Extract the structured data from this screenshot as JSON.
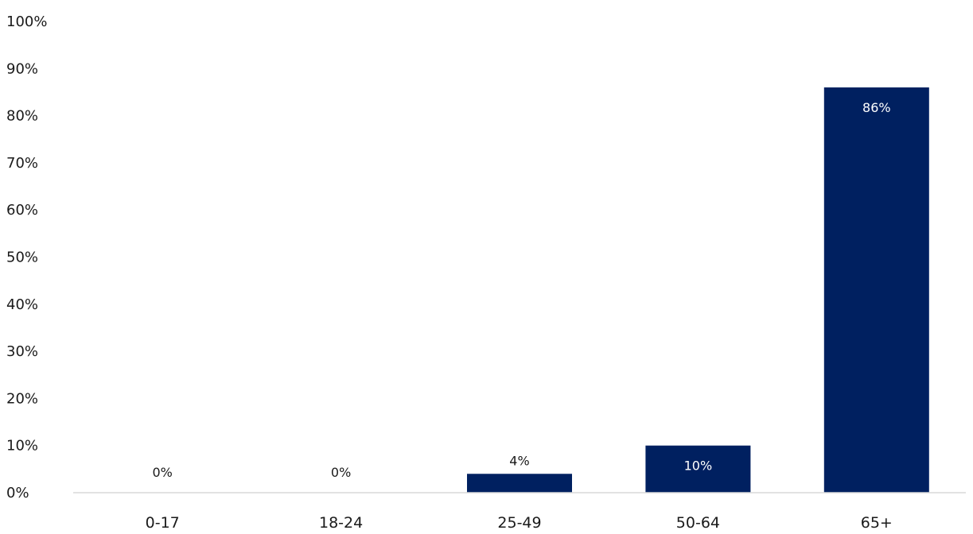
{
  "chart_data": {
    "type": "bar",
    "categories": [
      "0-17",
      "18-24",
      "25-49",
      "50-64",
      "65+"
    ],
    "values": [
      0,
      0,
      4,
      10,
      86
    ],
    "data_labels": [
      "0%",
      "0%",
      "4%",
      "10%",
      "86%"
    ],
    "y_tick_labels": [
      "0%",
      "10%",
      "20%",
      "30%",
      "40%",
      "50%",
      "60%",
      "70%",
      "80%",
      "90%",
      "100%"
    ],
    "ylim": [
      0,
      100
    ],
    "title": "",
    "xlabel": "",
    "ylabel": "",
    "grid": false,
    "legend": "none",
    "colors": {
      "bar": "#002060",
      "axis": "#d9d9d9",
      "text": "#1a1a1a",
      "label_inside": "#ffffff",
      "label_outside": "#1a1a1a"
    }
  }
}
